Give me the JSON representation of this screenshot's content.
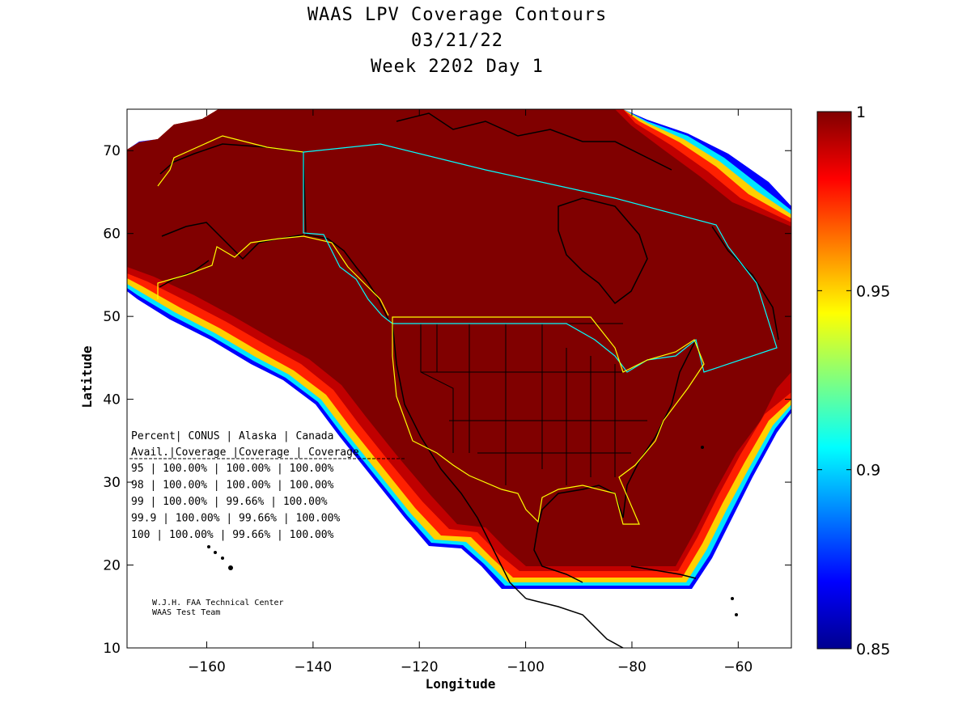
{
  "title": {
    "line1": "WAAS LPV Coverage Contours",
    "line2": "03/21/22",
    "line3": "Week 2202 Day 1"
  },
  "chart_data": {
    "type": "heatmap",
    "title": "WAAS LPV Coverage Contours",
    "xlabel": "Longitude",
    "ylabel": "Latitude",
    "xlim": [
      -175,
      -50
    ],
    "ylim": [
      10,
      75
    ],
    "x_ticks": [
      -160,
      -140,
      -120,
      -100,
      -80,
      -60
    ],
    "y_ticks": [
      10,
      20,
      30,
      40,
      50,
      60,
      70
    ],
    "colorbar": {
      "min": 0.85,
      "max": 1,
      "ticks": [
        "1",
        "0.95",
        "0.9",
        "0.85"
      ],
      "colormap": "jet"
    },
    "coverage_table": {
      "header1": [
        "Percent",
        "CONUS",
        "Alaska",
        "Canada"
      ],
      "header2": [
        "Avail.",
        "Coverage",
        "Coverage",
        "Coverage"
      ],
      "rows": [
        {
          "avail": "95",
          "conus": "100.00%",
          "alaska": "100.00%",
          "canada": "100.00%"
        },
        {
          "avail": "98",
          "conus": "100.00%",
          "alaska": "100.00%",
          "canada": "100.00%"
        },
        {
          "avail": "99",
          "conus": "100.00%",
          "alaska": "99.66%",
          "canada": "100.00%"
        },
        {
          "avail": "99.9",
          "conus": "100.00%",
          "alaska": "99.66%",
          "canada": "100.00%"
        },
        {
          "avail": "100",
          "conus": "100.00%",
          "alaska": "99.66%",
          "canada": "100.00%"
        }
      ]
    }
  },
  "credits": {
    "line1": "W.J.H. FAA Technical Center",
    "line2": "WAAS Test Team"
  },
  "colors": {
    "max_coverage": "#800000",
    "region_outline_conus": "#ffff00",
    "region_outline_canada": "#00ffff"
  }
}
